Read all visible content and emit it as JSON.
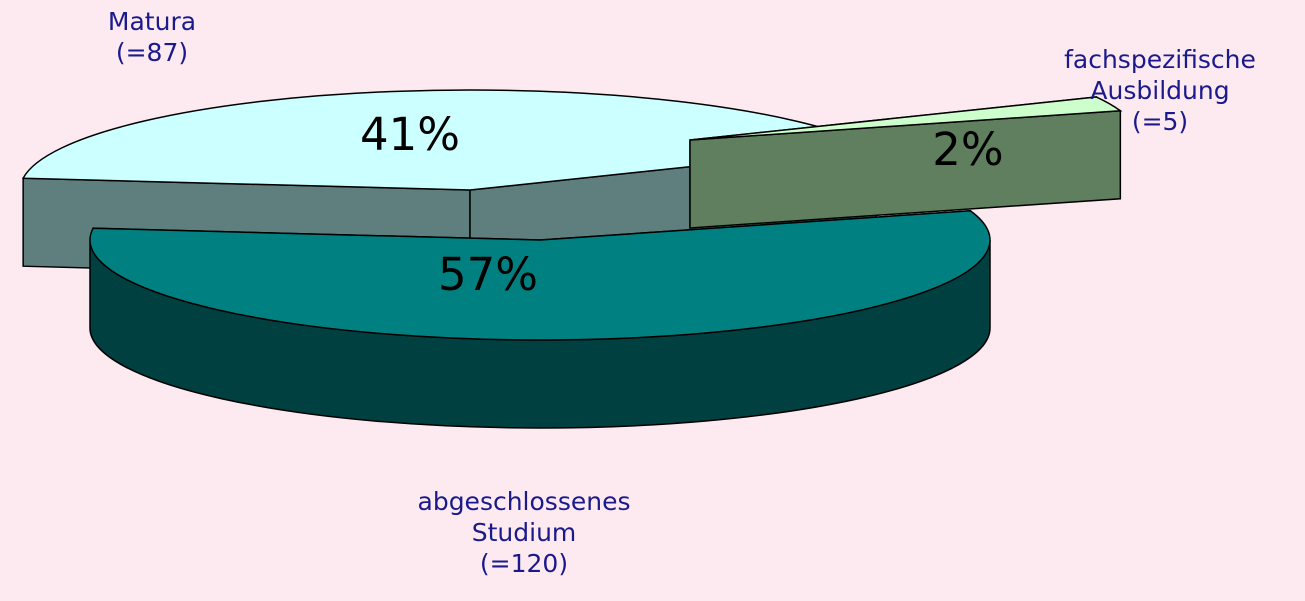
{
  "chart_data": {
    "type": "pie",
    "style": "3d-exploded",
    "title": "",
    "slices": [
      {
        "label_lines": [
          "Matura",
          "(=87)"
        ],
        "count": 87,
        "percent_label": "41%",
        "top_color": "#ccffff",
        "side_color": "#5f7f7f"
      },
      {
        "label_lines": [
          "fachspezifische",
          "Ausbildung",
          "(=5)"
        ],
        "count": 5,
        "percent_label": "2%",
        "top_color": "#ccffcc",
        "side_color": "#5f7f5f"
      },
      {
        "label_lines": [
          "abgeschlossenes",
          "Studium",
          "(=120)"
        ],
        "count": 120,
        "percent_label": "57%",
        "top_color": "#008080",
        "side_color": "#004040"
      }
    ],
    "background_color": "#fde9f0",
    "label_color": "#1a1a8c"
  }
}
